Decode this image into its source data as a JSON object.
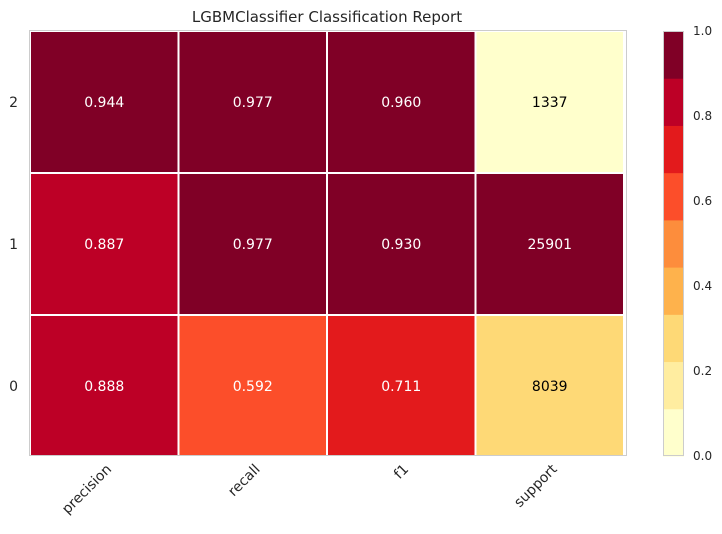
{
  "chart_data": {
    "type": "heatmap",
    "title": "LGBMClassifier Classification Report",
    "columns": [
      "precision",
      "recall",
      "f1",
      "support"
    ],
    "rows": [
      "2",
      "1",
      "0"
    ],
    "values": [
      [
        0.944,
        0.977,
        0.96,
        1337
      ],
      [
        0.887,
        0.977,
        0.93,
        25901
      ],
      [
        0.888,
        0.592,
        0.711,
        8039
      ]
    ],
    "cell_labels": [
      [
        "0.944",
        "0.977",
        "0.960",
        "1337"
      ],
      [
        "0.887",
        "0.977",
        "0.930",
        "25901"
      ],
      [
        "0.888",
        "0.592",
        "0.711",
        "8039"
      ]
    ],
    "support_scale_max": 25901,
    "colorbar": {
      "range": [
        0.0,
        1.0
      ],
      "ticks": [
        "0.0",
        "0.2",
        "0.4",
        "0.6",
        "0.8",
        "1.0"
      ],
      "colors": [
        "#ffffcc",
        "#ffeda0",
        "#fed976",
        "#feb24c",
        "#fd8d3c",
        "#fc4e2a",
        "#e31a1c",
        "#bd0026",
        "#800026"
      ]
    },
    "grid": false
  }
}
